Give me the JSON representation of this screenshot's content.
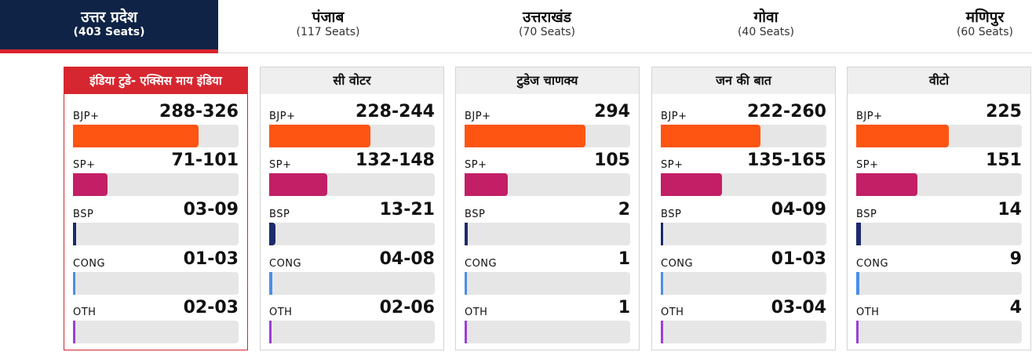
{
  "tabs": [
    {
      "name": "उत्तर प्रदेश",
      "seats": "(403 Seats)",
      "active": true
    },
    {
      "name": "पंजाब",
      "seats": "(117 Seats)",
      "active": false
    },
    {
      "name": "उत्तराखंड",
      "seats": "(70 Seats)",
      "active": false
    },
    {
      "name": "गोवा",
      "seats": "(40 Seats)",
      "active": false
    },
    {
      "name": "मणिपुर",
      "seats": "(60 Seats)",
      "active": false
    }
  ],
  "party_colors": {
    "BJP+": "#fe5512",
    "SP+": "#c21f66",
    "BSP": "#1c2b6b",
    "CONG": "#4a8fe6",
    "OTH": "#9b3fd6"
  },
  "polls": [
    {
      "name": "इंडिया टुडे- एक्सिस माय इंडिया",
      "active": true,
      "rows": [
        {
          "party": "BJP+",
          "value": "288-326",
          "fraction": 0.76
        },
        {
          "party": "SP+",
          "value": "71-101",
          "fraction": 0.21
        },
        {
          "party": "BSP",
          "value": "03-09",
          "fraction": 0.02
        },
        {
          "party": "CONG",
          "value": "01-03",
          "fraction": 0.008
        },
        {
          "party": "OTH",
          "value": "02-03",
          "fraction": 0.008
        }
      ]
    },
    {
      "name": "सी वोटर",
      "active": false,
      "rows": [
        {
          "party": "BJP+",
          "value": "228-244",
          "fraction": 0.61
        },
        {
          "party": "SP+",
          "value": "132-148",
          "fraction": 0.35
        },
        {
          "party": "BSP",
          "value": "13-21",
          "fraction": 0.04
        },
        {
          "party": "CONG",
          "value": "04-08",
          "fraction": 0.02
        },
        {
          "party": "OTH",
          "value": "02-06",
          "fraction": 0.01
        }
      ]
    },
    {
      "name": "टुडेज चाणक्य",
      "active": false,
      "rows": [
        {
          "party": "BJP+",
          "value": "294",
          "fraction": 0.73
        },
        {
          "party": "SP+",
          "value": "105",
          "fraction": 0.26
        },
        {
          "party": "BSP",
          "value": "2",
          "fraction": 0.02
        },
        {
          "party": "CONG",
          "value": "1",
          "fraction": 0.01
        },
        {
          "party": "OTH",
          "value": "1",
          "fraction": 0.01
        }
      ]
    },
    {
      "name": "जन की बात",
      "active": false,
      "rows": [
        {
          "party": "BJP+",
          "value": "222-260",
          "fraction": 0.6
        },
        {
          "party": "SP+",
          "value": "135-165",
          "fraction": 0.37
        },
        {
          "party": "BSP",
          "value": "04-09",
          "fraction": 0.015
        },
        {
          "party": "CONG",
          "value": "01-03",
          "fraction": 0.008
        },
        {
          "party": "OTH",
          "value": "03-04",
          "fraction": 0.008
        }
      ]
    },
    {
      "name": "वीटो",
      "active": false,
      "rows": [
        {
          "party": "BJP+",
          "value": "225",
          "fraction": 0.56
        },
        {
          "party": "SP+",
          "value": "151",
          "fraction": 0.37
        },
        {
          "party": "BSP",
          "value": "14",
          "fraction": 0.03
        },
        {
          "party": "CONG",
          "value": "9",
          "fraction": 0.02
        },
        {
          "party": "OTH",
          "value": "4",
          "fraction": 0.01
        }
      ]
    }
  ]
}
